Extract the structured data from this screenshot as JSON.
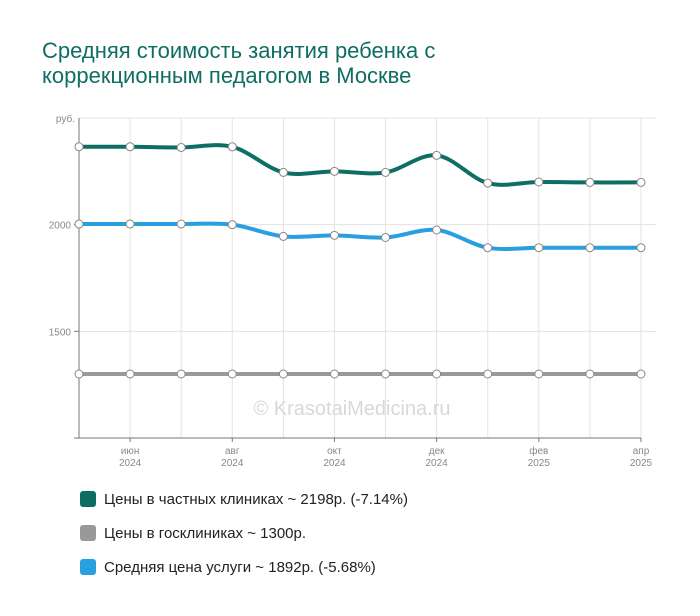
{
  "title_line1": "Средняя стоимость занятия ребенка с",
  "title_line2": "коррекционным педагогом в Москве",
  "watermark": "© KrasotaiMedicina.ru",
  "chart_data": {
    "type": "line",
    "y_unit_label": "руб.",
    "ylim": [
      1000,
      2500
    ],
    "yticks": [
      1500,
      2000
    ],
    "x": [
      "2024-05",
      "2024-06",
      "2024-07",
      "2024-08",
      "2024-09",
      "2024-10",
      "2024-11",
      "2024-12",
      "2025-01",
      "2025-02",
      "2025-03",
      "2025-04"
    ],
    "x_tick_labels": [
      {
        "month": "июн",
        "year": "2024",
        "index": 1
      },
      {
        "month": "авг",
        "year": "2024",
        "index": 3
      },
      {
        "month": "окт",
        "year": "2024",
        "index": 5
      },
      {
        "month": "дек",
        "year": "2024",
        "index": 7
      },
      {
        "month": "фев",
        "year": "2025",
        "index": 9
      },
      {
        "month": "апр",
        "year": "2025",
        "index": 11
      }
    ],
    "series": [
      {
        "key": "private",
        "color": "#0f6e63",
        "values": [
          2365,
          2365,
          2362,
          2365,
          2245,
          2250,
          2245,
          2325,
          2195,
          2200,
          2198,
          2198
        ]
      },
      {
        "key": "public",
        "color": "#999999",
        "values": [
          1300,
          1300,
          1300,
          1300,
          1300,
          1300,
          1300,
          1300,
          1300,
          1300,
          1300,
          1300
        ]
      },
      {
        "key": "average",
        "color": "#2a9fe0",
        "values": [
          2003,
          2003,
          2003,
          2000,
          1945,
          1950,
          1940,
          1975,
          1892,
          1892,
          1892,
          1892
        ]
      }
    ],
    "grid": true,
    "legend": "bottom"
  },
  "legend": [
    {
      "label": "Цены в частных клиниках ~ 2198р. (-7.14%)",
      "color": "#0f6e63"
    },
    {
      "label": "Цены в госклиниках ~ 1300р.",
      "color": "#999999"
    },
    {
      "label": "Средняя цена услуги ~ 1892р. (-5.68%)",
      "color": "#2a9fe0"
    }
  ]
}
